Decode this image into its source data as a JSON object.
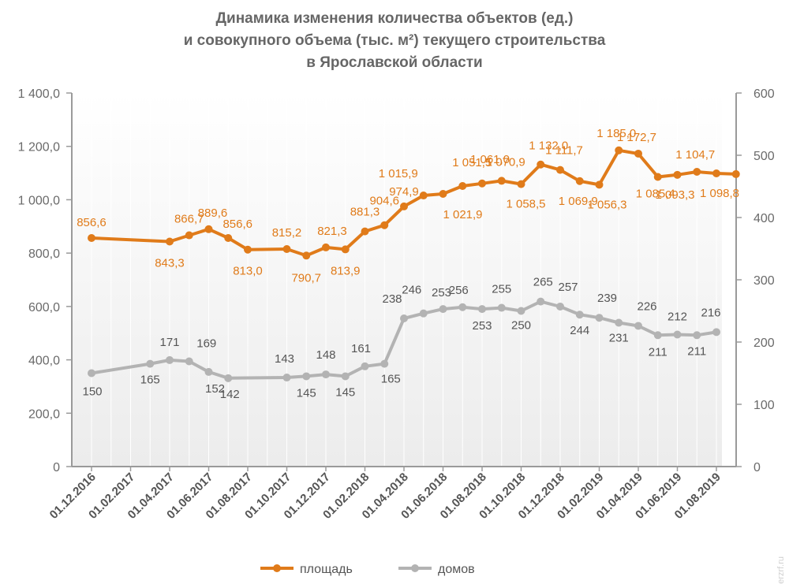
{
  "chart_data": {
    "type": "line",
    "title": [
      "Динамика изменения количества объектов (ед.)",
      "и совокупного объема (тыс. м²) текущего строительства",
      "в Ярославской области"
    ],
    "x_tick_labels": [
      "01.12.2016",
      "01.02.2017",
      "01.04.2017",
      "01.06.2017",
      "01.08.2017",
      "01.10.2017",
      "01.12.2017",
      "01.02.2018",
      "01.04.2018",
      "01.06.2018",
      "01.08.2018",
      "01.10.2018",
      "01.12.2018",
      "01.02.2019",
      "01.04.2019",
      "01.06.2019",
      "01.08.2019"
    ],
    "y_left": {
      "min": 0,
      "max": 1400,
      "ticks": [
        "0",
        "200,0",
        "400,0",
        "600,0",
        "800,0",
        "1 000,0",
        "1 200,0",
        "1 400,0"
      ]
    },
    "y_right": {
      "min": 0,
      "max": 600,
      "ticks": [
        "0",
        "100",
        "200",
        "300",
        "400",
        "500",
        "600"
      ]
    },
    "grid": "vertical",
    "legend_position": "bottom",
    "colors": {
      "area": "#e07b1a",
      "houses": "#b3b3b3",
      "area_label": "#e07b1a",
      "houses_label": "#555555",
      "axis": "#9a9a9a"
    },
    "series": [
      {
        "name": "площадь",
        "axis": "left",
        "x_index": [
          0,
          2,
          2.5,
          3,
          3.5,
          4,
          5,
          5.5,
          6,
          6.5,
          7,
          7.5,
          8,
          8.5,
          9,
          9.5,
          10,
          10.5,
          11,
          11.5,
          12,
          12.5,
          13,
          13.5,
          14,
          14.5,
          15,
          15.5,
          16,
          16.5
        ],
        "values": [
          856.6,
          843.3,
          866.7,
          889.6,
          856.6,
          813.0,
          815.2,
          790.7,
          821.3,
          813.9,
          881.3,
          904.6,
          974.9,
          1015.9,
          1021.9,
          1051.5,
          1061.0,
          1070.9,
          1058.5,
          1132.0,
          1111.7,
          1069.9,
          1056.3,
          1185.0,
          1172.7,
          1085.4,
          1093.3,
          1104.7,
          1098.8,
          1096.0
        ],
        "labels": [
          "856,6",
          "843,3",
          "866,7",
          "889,6",
          "856,6",
          "813,0",
          "815,2",
          "790,7",
          "821,3",
          "813,9",
          "881,3",
          "904,6",
          "974,9",
          "1 015,9",
          "1 021,9",
          "1 051,5",
          "1 061,0",
          "1 070,9",
          "1 058,5",
          "1 132,0",
          "1 111,7",
          "1 069,9",
          "1 056,3",
          "1 185,0",
          "1 172,7",
          "1 085,4",
          "1 093,3",
          "1 104,7",
          "1 098,8",
          ""
        ]
      },
      {
        "name": "домов",
        "axis": "right",
        "x_index": [
          0,
          1.5,
          2,
          2.5,
          3,
          3.5,
          5,
          5.5,
          6,
          6.5,
          7,
          7.5,
          8,
          8.5,
          9,
          9.5,
          10,
          10.5,
          11,
          11.5,
          12,
          12.5,
          13,
          13.5,
          14,
          14.5,
          15,
          15.5,
          16
        ],
        "values": [
          150,
          165,
          171,
          169,
          152,
          142,
          143,
          145,
          148,
          145,
          161,
          165,
          238,
          246,
          253,
          256,
          253,
          255,
          250,
          265,
          257,
          244,
          239,
          231,
          226,
          211,
          212,
          211,
          216
        ],
        "labels": [
          "150",
          "165",
          "171",
          "169",
          "152",
          "142",
          "143",
          "145",
          "148",
          "145",
          "161",
          "165",
          "238",
          "246",
          "253",
          "256",
          "253",
          "255",
          "250",
          "265",
          "257",
          "244",
          "239",
          "231",
          "226",
          "211",
          "212",
          "211",
          "216"
        ]
      }
    ],
    "legend": [
      {
        "name": "площадь",
        "color": "#e07b1a"
      },
      {
        "name": "домов",
        "color": "#b3b3b3"
      }
    ]
  },
  "watermark": "erzrf.ru"
}
